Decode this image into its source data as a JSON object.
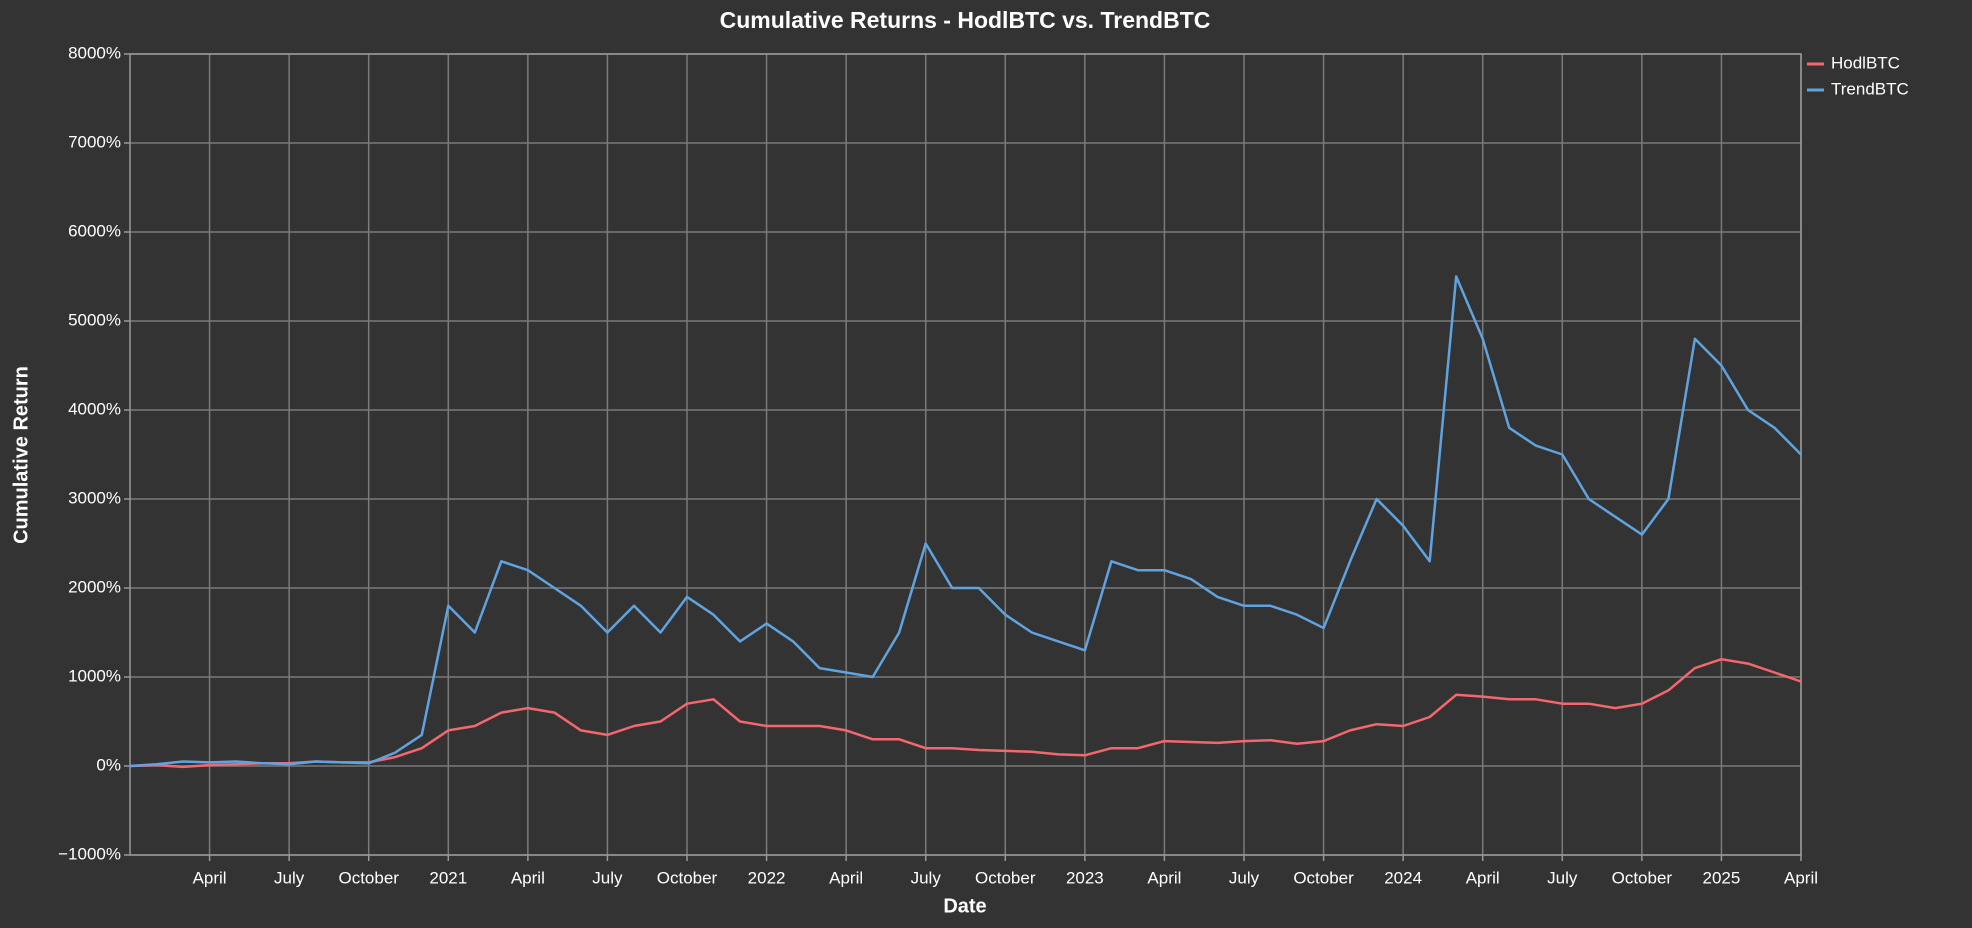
{
  "chart_data": {
    "type": "line",
    "title": "Cumulative Returns - HodlBTC vs. TrendBTC",
    "x_label": "Date",
    "y_label": "Cumulative Return",
    "grid": true,
    "legend": "top-right",
    "x": [
      "2020-01",
      "2020-02",
      "2020-03",
      "2020-04",
      "2020-05",
      "2020-06",
      "2020-07",
      "2020-08",
      "2020-09",
      "2020-10",
      "2020-11",
      "2020-12",
      "2021-01",
      "2021-02",
      "2021-03",
      "2021-04",
      "2021-05",
      "2021-06",
      "2021-07",
      "2021-08",
      "2021-09",
      "2021-10",
      "2021-11",
      "2021-12",
      "2022-01",
      "2022-02",
      "2022-03",
      "2022-04",
      "2022-05",
      "2022-06",
      "2022-07",
      "2022-08",
      "2022-09",
      "2022-10",
      "2022-11",
      "2022-12",
      "2023-01",
      "2023-02",
      "2023-03",
      "2023-04",
      "2023-05",
      "2023-06",
      "2023-07",
      "2023-08",
      "2023-09",
      "2023-10",
      "2023-11",
      "2023-12",
      "2024-01",
      "2024-02",
      "2024-03",
      "2024-04",
      "2024-05",
      "2024-06",
      "2024-07",
      "2024-08",
      "2024-09",
      "2024-10",
      "2024-11",
      "2024-12",
      "2025-01",
      "2025-02",
      "2025-03",
      "2025-04"
    ],
    "xlim": [
      "2020-01",
      "2025-04"
    ],
    "xticks": [
      {
        "value": "2020-04",
        "label": "April"
      },
      {
        "value": "2020-07",
        "label": "July"
      },
      {
        "value": "2020-10",
        "label": "October"
      },
      {
        "value": "2021-01",
        "label": "2021"
      },
      {
        "value": "2021-04",
        "label": "April"
      },
      {
        "value": "2021-07",
        "label": "July"
      },
      {
        "value": "2021-10",
        "label": "October"
      },
      {
        "value": "2022-01",
        "label": "2022"
      },
      {
        "value": "2022-04",
        "label": "April"
      },
      {
        "value": "2022-07",
        "label": "July"
      },
      {
        "value": "2022-10",
        "label": "October"
      },
      {
        "value": "2023-01",
        "label": "2023"
      },
      {
        "value": "2023-04",
        "label": "April"
      },
      {
        "value": "2023-07",
        "label": "July"
      },
      {
        "value": "2023-10",
        "label": "October"
      },
      {
        "value": "2024-01",
        "label": "2024"
      },
      {
        "value": "2024-04",
        "label": "April"
      },
      {
        "value": "2024-07",
        "label": "July"
      },
      {
        "value": "2024-10",
        "label": "October"
      },
      {
        "value": "2025-01",
        "label": "2025"
      },
      {
        "value": "2025-04",
        "label": "April"
      }
    ],
    "ylim": [
      -1000,
      8000
    ],
    "yticks": [
      {
        "value": -1000,
        "label": "−1000%"
      },
      {
        "value": 0,
        "label": "0%"
      },
      {
        "value": 1000,
        "label": "1000%"
      },
      {
        "value": 2000,
        "label": "2000%"
      },
      {
        "value": 3000,
        "label": "3000%"
      },
      {
        "value": 4000,
        "label": "4000%"
      },
      {
        "value": 5000,
        "label": "5000%"
      },
      {
        "value": 6000,
        "label": "6000%"
      },
      {
        "value": 7000,
        "label": "7000%"
      },
      {
        "value": 8000,
        "label": "8000%"
      }
    ],
    "series": [
      {
        "name": "HodlBTC",
        "color": "#f4676e",
        "values": [
          0,
          10,
          -10,
          10,
          20,
          30,
          30,
          50,
          40,
          40,
          100,
          200,
          400,
          450,
          600,
          650,
          600,
          400,
          350,
          450,
          500,
          700,
          750,
          500,
          450,
          450,
          450,
          400,
          300,
          300,
          200,
          200,
          180,
          170,
          160,
          130,
          120,
          200,
          200,
          280,
          270,
          260,
          280,
          290,
          250,
          280,
          400,
          470,
          450,
          550,
          800,
          780,
          750,
          750,
          700,
          700,
          650,
          700,
          850,
          1100,
          1200,
          1150,
          1050,
          950
        ]
      },
      {
        "name": "TrendBTC",
        "color": "#5fa3e0",
        "values": [
          0,
          20,
          50,
          40,
          50,
          30,
          20,
          50,
          40,
          30,
          150,
          350,
          1800,
          1500,
          2300,
          2200,
          2000,
          1800,
          1500,
          1800,
          1500,
          1900,
          1700,
          1400,
          1600,
          1400,
          1100,
          1050,
          1000,
          1500,
          2500,
          2000,
          2000,
          1700,
          1500,
          1400,
          1300,
          2300,
          2200,
          2200,
          2100,
          1900,
          1800,
          1800,
          1700,
          1550,
          2300,
          3000,
          2700,
          2300,
          5500,
          4800,
          3800,
          3600,
          3500,
          3000,
          2800,
          2600,
          3000,
          4800,
          4500,
          4000,
          3800,
          3500
        ]
      }
    ]
  }
}
